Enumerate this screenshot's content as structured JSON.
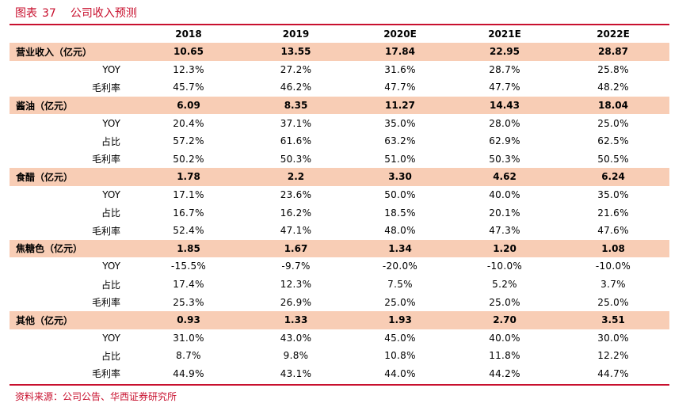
{
  "title": {
    "label": "图表",
    "number": "37",
    "text": "公司收入预测"
  },
  "table": {
    "headers": [
      "",
      "2018",
      "2019",
      "2020E",
      "2021E",
      "2022E"
    ],
    "sections": [
      {
        "label": "营业收入（亿元）",
        "values": [
          "10.65",
          "13.55",
          "17.84",
          "22.95",
          "28.87"
        ],
        "rows": [
          {
            "label": "YOY",
            "values": [
              "12.3%",
              "27.2%",
              "31.6%",
              "28.7%",
              "25.8%"
            ]
          },
          {
            "label": "毛利率",
            "values": [
              "45.7%",
              "46.2%",
              "47.7%",
              "47.7%",
              "48.2%"
            ]
          }
        ]
      },
      {
        "label": "酱油（亿元）",
        "values": [
          "6.09",
          "8.35",
          "11.27",
          "14.43",
          "18.04"
        ],
        "rows": [
          {
            "label": "YOY",
            "values": [
              "20.4%",
              "37.1%",
              "35.0%",
              "28.0%",
              "25.0%"
            ]
          },
          {
            "label": "占比",
            "values": [
              "57.2%",
              "61.6%",
              "63.2%",
              "62.9%",
              "62.5%"
            ]
          },
          {
            "label": "毛利率",
            "values": [
              "50.2%",
              "50.3%",
              "51.0%",
              "50.3%",
              "50.5%"
            ]
          }
        ]
      },
      {
        "label": "食醋（亿元）",
        "values": [
          "1.78",
          "2.2",
          "3.30",
          "4.62",
          "6.24"
        ],
        "rows": [
          {
            "label": "YOY",
            "values": [
              "17.1%",
              "23.6%",
              "50.0%",
              "40.0%",
              "35.0%"
            ]
          },
          {
            "label": "占比",
            "values": [
              "16.7%",
              "16.2%",
              "18.5%",
              "20.1%",
              "21.6%"
            ]
          },
          {
            "label": "毛利率",
            "values": [
              "52.4%",
              "47.1%",
              "48.0%",
              "47.3%",
              "47.6%"
            ]
          }
        ]
      },
      {
        "label": "焦糖色（亿元）",
        "values": [
          "1.85",
          "1.67",
          "1.34",
          "1.20",
          "1.08"
        ],
        "rows": [
          {
            "label": "YOY",
            "values": [
              "-15.5%",
              "-9.7%",
              "-20.0%",
              "-10.0%",
              "-10.0%"
            ]
          },
          {
            "label": "占比",
            "values": [
              "17.4%",
              "12.3%",
              "7.5%",
              "5.2%",
              "3.7%"
            ]
          },
          {
            "label": "毛利率",
            "values": [
              "25.3%",
              "26.9%",
              "25.0%",
              "25.0%",
              "25.0%"
            ]
          }
        ]
      },
      {
        "label": "其他（亿元）",
        "values": [
          "0.93",
          "1.33",
          "1.93",
          "2.70",
          "3.51"
        ],
        "rows": [
          {
            "label": "YOY",
            "values": [
              "31.0%",
              "43.0%",
              "45.0%",
              "40.0%",
              "30.0%"
            ]
          },
          {
            "label": "占比",
            "values": [
              "8.7%",
              "9.8%",
              "10.8%",
              "11.8%",
              "12.2%"
            ]
          },
          {
            "label": "毛利率",
            "values": [
              "44.9%",
              "43.1%",
              "44.0%",
              "44.2%",
              "44.7%"
            ]
          }
        ]
      }
    ]
  },
  "source": "资料来源：公司公告、华西证券研究所",
  "colors": {
    "accent": "#c8102e",
    "highlight_row": "#f8cdb5"
  }
}
